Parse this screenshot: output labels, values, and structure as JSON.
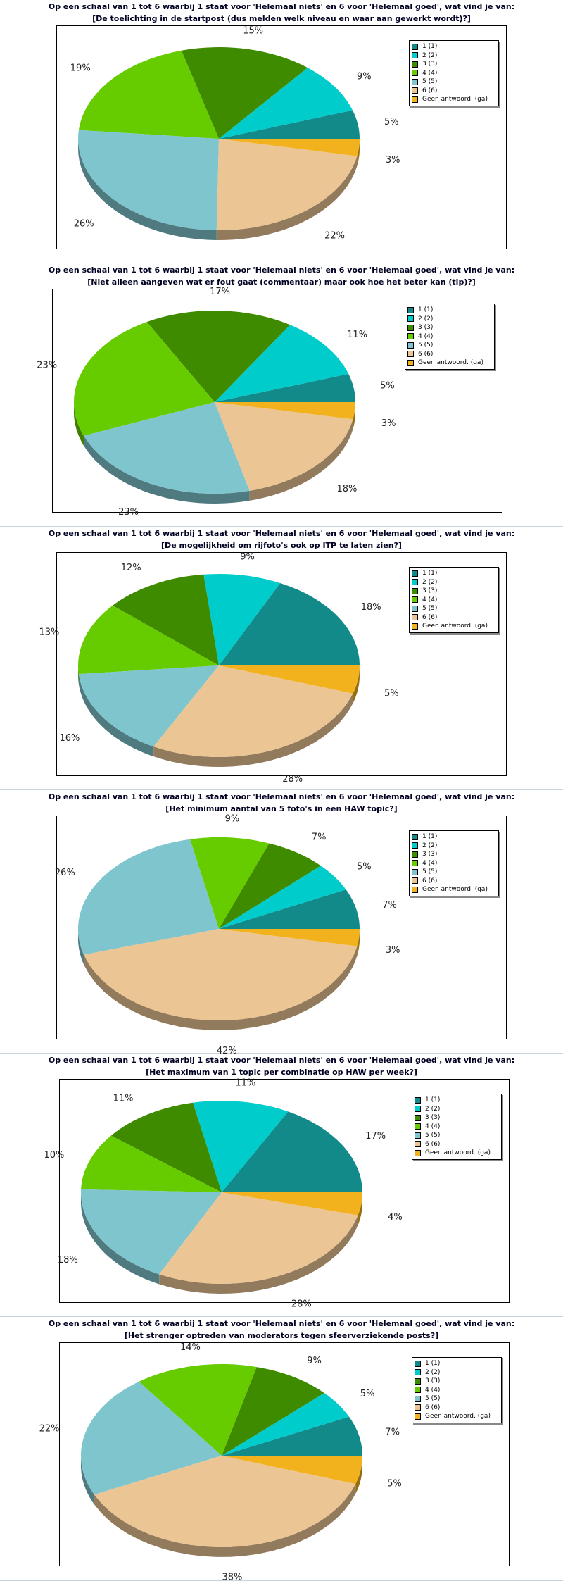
{
  "legend_labels": [
    "1 (1)",
    "2 (2)",
    "3 (3)",
    "4 (4)",
    "5 (5)",
    "6 (6)",
    "Geen antwoord. (ga)"
  ],
  "colors": [
    "#138a8a",
    "#00cccc",
    "#3f8b00",
    "#66cc00",
    "#7fc5cd",
    "#ecc595",
    "#f2b21d"
  ],
  "sections": [
    {
      "question": "Op een schaal van 1 tot 6 waarbij 1 staat voor 'Helemaal niets' en 6 voor 'Helemaal goed', wat vind je van:",
      "topic": "[De toelichting in de startpost (dus melden welk niveau en waar aan gewerkt wordt)?]",
      "chart_data": {
        "type": "pie",
        "categories": [
          "1 (1)",
          "2 (2)",
          "3 (3)",
          "4 (4)",
          "5 (5)",
          "6 (6)",
          "Geen antwoord. (ga)"
        ],
        "values": [
          5,
          9,
          15,
          19,
          26,
          22,
          3
        ],
        "labels": [
          "5%",
          "9%",
          "15%",
          "19%",
          "26%",
          "22%",
          "3%"
        ]
      }
    },
    {
      "question": "Op een schaal van 1 tot 6 waarbij 1 staat voor 'Helemaal niets' en 6 voor 'Helemaal goed', wat vind je van:",
      "topic": "[Niet alleen aangeven wat er fout gaat (commentaar) maar ook hoe het beter kan (tip)?]",
      "chart_data": {
        "type": "pie",
        "categories": [
          "1 (1)",
          "2 (2)",
          "3 (3)",
          "4 (4)",
          "5 (5)",
          "6 (6)",
          "Geen antwoord. (ga)"
        ],
        "values": [
          5,
          11,
          17,
          23,
          23,
          18,
          3
        ],
        "labels": [
          "5%",
          "11%",
          "17%",
          "23%",
          "23%",
          "18%",
          "3%"
        ]
      }
    },
    {
      "question": "Op een schaal van 1 tot 6 waarbij 1 staat voor 'Helemaal niets' en 6 voor 'Helemaal goed', wat vind je van:",
      "topic": "[De mogelijkheid om rijfoto's ook op ITP te laten zien?]",
      "chart_data": {
        "type": "pie",
        "categories": [
          "1 (1)",
          "2 (2)",
          "3 (3)",
          "4 (4)",
          "5 (5)",
          "6 (6)",
          "Geen antwoord. (ga)"
        ],
        "values": [
          18,
          9,
          12,
          13,
          16,
          28,
          5
        ],
        "labels": [
          "18%",
          "9%",
          "12%",
          "13%",
          "16%",
          "28%",
          "5%"
        ]
      }
    },
    {
      "question": "Op een schaal van 1 tot 6 waarbij 1 staat voor 'Helemaal niets' en 6 voor 'Helemaal goed', wat vind je van:",
      "topic": "[Het minimum aantal van 5 foto's in een HAW topic?]",
      "chart_data": {
        "type": "pie",
        "categories": [
          "1 (1)",
          "2 (2)",
          "3 (3)",
          "4 (4)",
          "5 (5)",
          "6 (6)",
          "Geen antwoord. (ga)"
        ],
        "values": [
          7,
          5,
          7,
          9,
          26,
          42,
          3
        ],
        "labels": [
          "7%",
          "5%",
          "7%",
          "9%",
          "26%",
          "42%",
          "3%"
        ]
      }
    },
    {
      "question": "Op een schaal van 1 tot 6 waarbij 1 staat voor 'Helemaal niets' en 6 voor 'Helemaal goed', wat vind je van:",
      "topic": "[Het maximum van 1 topic per combinatie op HAW per week?]",
      "chart_data": {
        "type": "pie",
        "categories": [
          "1 (1)",
          "2 (2)",
          "3 (3)",
          "4 (4)",
          "5 (5)",
          "6 (6)",
          "Geen antwoord. (ga)"
        ],
        "values": [
          17,
          11,
          11,
          10,
          18,
          28,
          4
        ],
        "labels": [
          "17%",
          "11%",
          "11%",
          "10%",
          "18%",
          "28%",
          "4%"
        ]
      }
    },
    {
      "question": "Op een schaal van 1 tot 6 waarbij 1 staat voor 'Helemaal niets' en 6 voor 'Helemaal goed', wat vind je van:",
      "topic": "[Het strenger optreden van moderators tegen sfeerverziekende posts?]",
      "chart_data": {
        "type": "pie",
        "categories": [
          "1 (1)",
          "2 (2)",
          "3 (3)",
          "4 (4)",
          "5 (5)",
          "6 (6)",
          "Geen antwoord. (ga)"
        ],
        "values": [
          7,
          5,
          9,
          14,
          22,
          38,
          5
        ],
        "labels": [
          "7%",
          "5%",
          "9%",
          "14%",
          "22%",
          "38%",
          "5%"
        ]
      }
    }
  ]
}
